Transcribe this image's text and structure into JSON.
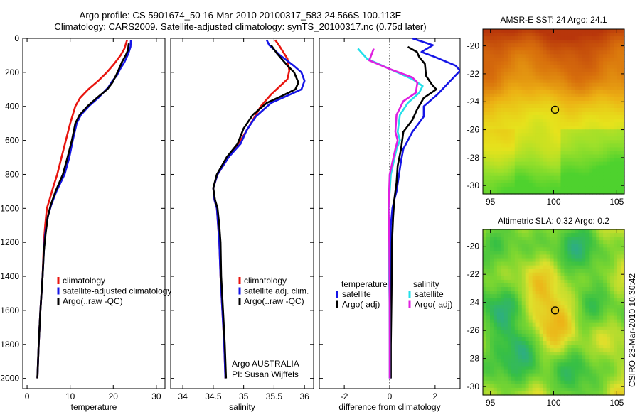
{
  "title_line1": "Argo profile: CS 5901674_50 16-Mar-2010 20100317_583 24.566S 100.113E",
  "title_line2": "Climatology: CARS2009. Satellite-adjusted climatology: synTS_20100317.nc (0.75d later)",
  "side_label": "CSIRO 23-Mar-2010 10:30:42",
  "chart_data": [
    {
      "type": "line",
      "xlabel": "temperature",
      "xlim": [
        -1,
        32
      ],
      "xticks": [
        0,
        10,
        20,
        30
      ],
      "ylim": [
        2060,
        0
      ],
      "yticks": [
        0,
        200,
        400,
        600,
        800,
        1000,
        1200,
        1400,
        1600,
        1800,
        2000
      ],
      "legend": [
        "climatology",
        "satellite-adjusted climatology",
        "Argo(..raw -QC)"
      ],
      "series": [
        {
          "name": "climatology",
          "color": "#e8150f",
          "points": [
            [
              23.2,
              10
            ],
            [
              22.6,
              60
            ],
            [
              21.7,
              100
            ],
            [
              20.2,
              150
            ],
            [
              18.5,
              200
            ],
            [
              16.5,
              250
            ],
            [
              14.2,
              300
            ],
            [
              12.3,
              350
            ],
            [
              11.2,
              400
            ],
            [
              10.0,
              500
            ],
            [
              9.0,
              600
            ],
            [
              8.0,
              700
            ],
            [
              7.0,
              800
            ],
            [
              6.0,
              880
            ],
            [
              5.2,
              950
            ],
            [
              4.6,
              1000
            ],
            [
              4.2,
              1100
            ],
            [
              3.9,
              1200
            ],
            [
              3.6,
              1400
            ],
            [
              3.1,
              1600
            ],
            [
              2.7,
              1800
            ],
            [
              2.4,
              2000
            ]
          ]
        },
        {
          "name": "satellite-adjusted climatology",
          "color": "#1515e6",
          "points": [
            [
              24.1,
              10
            ],
            [
              24.0,
              50
            ],
            [
              23.5,
              90
            ],
            [
              22.6,
              140
            ],
            [
              21.6,
              180
            ],
            [
              20.8,
              220
            ],
            [
              19.8,
              250
            ],
            [
              18.8,
              290
            ],
            [
              16.5,
              350
            ],
            [
              14.3,
              400
            ],
            [
              12.5,
              450
            ],
            [
              11.5,
              500
            ],
            [
              10.6,
              600
            ],
            [
              9.8,
              700
            ],
            [
              8.7,
              800
            ],
            [
              6.8,
              900
            ],
            [
              5.6,
              980
            ],
            [
              4.8,
              1050
            ],
            [
              4.2,
              1150
            ],
            [
              3.9,
              1250
            ],
            [
              3.6,
              1400
            ],
            [
              3.1,
              1600
            ],
            [
              2.7,
              1800
            ],
            [
              2.4,
              2000
            ]
          ]
        },
        {
          "name": "Argo(..raw -QC)",
          "color": "#000000",
          "points": [
            [
              23.6,
              30
            ],
            [
              23.4,
              70
            ],
            [
              22.9,
              100
            ],
            [
              22.0,
              140
            ],
            [
              21.5,
              170
            ],
            [
              20.8,
              210
            ],
            [
              19.8,
              260
            ],
            [
              18.6,
              300
            ],
            [
              16.2,
              350
            ],
            [
              14.0,
              400
            ],
            [
              12.2,
              450
            ],
            [
              11.2,
              500
            ],
            [
              10.4,
              600
            ],
            [
              9.4,
              700
            ],
            [
              8.3,
              800
            ],
            [
              6.6,
              900
            ],
            [
              5.5,
              980
            ],
            [
              4.8,
              1050
            ],
            [
              4.3,
              1150
            ],
            [
              3.9,
              1250
            ],
            [
              3.6,
              1400
            ],
            [
              3.1,
              1600
            ],
            [
              2.7,
              1800
            ],
            [
              2.4,
              2000
            ]
          ]
        }
      ]
    },
    {
      "type": "line",
      "xlabel": "salinity",
      "xlim": [
        33.8,
        36.15
      ],
      "xticks": [
        34,
        34.5,
        35,
        35.5,
        36
      ],
      "ylim": [
        2060,
        0
      ],
      "legend": [
        "climatology",
        "satellite adj. clim.",
        "Argo(..raw -QC)"
      ],
      "annotation_line1": "Argo AUSTRALIA",
      "annotation_line2": "PI: Susan Wijffels",
      "series": [
        {
          "name": "climatology",
          "color": "#e8150f",
          "points": [
            [
              35.52,
              10
            ],
            [
              35.58,
              40
            ],
            [
              35.72,
              120
            ],
            [
              35.75,
              190
            ],
            [
              35.72,
              240
            ],
            [
              35.6,
              280
            ],
            [
              35.45,
              330
            ],
            [
              35.28,
              400
            ],
            [
              35.12,
              500
            ],
            [
              34.95,
              600
            ],
            [
              34.75,
              700
            ],
            [
              34.57,
              800
            ],
            [
              34.5,
              880
            ],
            [
              34.52,
              950
            ],
            [
              34.56,
              1000
            ],
            [
              34.58,
              1100
            ],
            [
              34.6,
              1200
            ],
            [
              34.62,
              1400
            ],
            [
              34.65,
              1600
            ],
            [
              34.68,
              1800
            ],
            [
              34.7,
              2000
            ]
          ]
        },
        {
          "name": "satellite adj. clim.",
          "color": "#1515e6",
          "points": [
            [
              35.38,
              10
            ],
            [
              35.42,
              40
            ],
            [
              35.6,
              100
            ],
            [
              35.82,
              160
            ],
            [
              35.95,
              200
            ],
            [
              36.0,
              250
            ],
            [
              35.95,
              300
            ],
            [
              35.7,
              340
            ],
            [
              35.45,
              380
            ],
            [
              35.2,
              460
            ],
            [
              35.05,
              540
            ],
            [
              34.95,
              620
            ],
            [
              34.75,
              700
            ],
            [
              34.57,
              800
            ],
            [
              34.5,
              880
            ],
            [
              34.52,
              950
            ],
            [
              34.56,
              1000
            ],
            [
              34.58,
              1100
            ],
            [
              34.6,
              1200
            ],
            [
              34.62,
              1400
            ],
            [
              34.65,
              1600
            ],
            [
              34.68,
              1800
            ],
            [
              34.7,
              2000
            ]
          ]
        },
        {
          "name": "Argo(..raw -QC)",
          "color": "#000000",
          "points": [
            [
              35.45,
              40
            ],
            [
              35.55,
              90
            ],
            [
              35.72,
              160
            ],
            [
              35.83,
              200
            ],
            [
              35.9,
              260
            ],
            [
              35.85,
              300
            ],
            [
              35.62,
              340
            ],
            [
              35.38,
              380
            ],
            [
              35.15,
              450
            ],
            [
              35.0,
              530
            ],
            [
              34.9,
              620
            ],
            [
              34.72,
              700
            ],
            [
              34.56,
              800
            ],
            [
              34.5,
              880
            ],
            [
              34.53,
              950
            ],
            [
              34.57,
              1000
            ],
            [
              34.6,
              1100
            ],
            [
              34.62,
              1200
            ],
            [
              34.63,
              1400
            ],
            [
              34.66,
              1600
            ],
            [
              34.69,
              1800
            ],
            [
              34.71,
              2000
            ]
          ]
        }
      ]
    },
    {
      "type": "line",
      "xlabel": "difference from climatology",
      "xlim": [
        -3.1,
        3.1
      ],
      "xticks": [
        -2,
        0,
        2
      ],
      "ylim": [
        2060,
        0
      ],
      "legend_groups": [
        {
          "heading": "temperature",
          "items": [
            {
              "label": "satellite",
              "color": "#1515e6"
            },
            {
              "label": "Argo(-adj)",
              "color": "#000000"
            }
          ]
        },
        {
          "heading": "salinity",
          "items": [
            {
              "label": "satellite",
              "color": "#22e0ea"
            },
            {
              "label": "Argo(-adj)",
              "color": "#e020e0"
            }
          ]
        }
      ],
      "series": [
        {
          "name": "temperature satellite",
          "color": "#1515e6",
          "points": [
            [
              1.0,
              0
            ],
            [
              1.9,
              40
            ],
            [
              1.4,
              80
            ],
            [
              2.0,
              110
            ],
            [
              2.9,
              160
            ],
            [
              3.1,
              190
            ],
            [
              2.6,
              260
            ],
            [
              2.1,
              330
            ],
            [
              1.5,
              400
            ],
            [
              1.5,
              460
            ],
            [
              1.0,
              550
            ],
            [
              0.6,
              650
            ],
            [
              0.5,
              720
            ],
            [
              0.3,
              900
            ],
            [
              0.2,
              950
            ],
            [
              0.12,
              1000
            ],
            [
              0.05,
              1100
            ],
            [
              0.02,
              1400
            ],
            [
              0.0,
              1600
            ],
            [
              0.02,
              2000
            ]
          ]
        },
        {
          "name": "temperature Argo(-adj)",
          "color": "#000000",
          "points": [
            [
              0.8,
              50
            ],
            [
              1.2,
              80
            ],
            [
              1.3,
              110
            ],
            [
              1.55,
              150
            ],
            [
              1.6,
              220
            ],
            [
              1.85,
              270
            ],
            [
              2.05,
              300
            ],
            [
              1.5,
              350
            ],
            [
              1.2,
              420
            ],
            [
              1.0,
              480
            ],
            [
              0.6,
              550
            ],
            [
              0.5,
              650
            ],
            [
              0.35,
              750
            ],
            [
              0.3,
              850
            ],
            [
              0.2,
              950
            ],
            [
              0.15,
              1050
            ],
            [
              0.1,
              1200
            ],
            [
              0.08,
              1500
            ],
            [
              0.05,
              1800
            ],
            [
              0.05,
              2000
            ]
          ]
        },
        {
          "name": "salinity satellite",
          "color": "#22e0ea",
          "points": [
            [
              -1.4,
              60
            ],
            [
              -1.0,
              120
            ],
            [
              0.0,
              180
            ],
            [
              1.0,
              240
            ],
            [
              1.45,
              280
            ],
            [
              1.3,
              320
            ],
            [
              0.8,
              380
            ],
            [
              0.45,
              450
            ],
            [
              0.35,
              550
            ],
            [
              0.45,
              600
            ],
            [
              0.3,
              650
            ],
            [
              0.05,
              800
            ],
            [
              -0.05,
              1000
            ],
            [
              -0.05,
              1200
            ],
            [
              0.0,
              1600
            ],
            [
              0.0,
              2000
            ]
          ]
        },
        {
          "name": "salinity Argo(-adj)",
          "color": "#e020e0",
          "points": [
            [
              -0.7,
              60
            ],
            [
              -0.9,
              130
            ],
            [
              0.0,
              180
            ],
            [
              1.0,
              230
            ],
            [
              1.22,
              260
            ],
            [
              1.15,
              320
            ],
            [
              0.6,
              370
            ],
            [
              0.3,
              450
            ],
            [
              0.25,
              550
            ],
            [
              0.35,
              600
            ],
            [
              0.25,
              650
            ],
            [
              0.0,
              800
            ],
            [
              -0.05,
              1000
            ],
            [
              -0.02,
              1200
            ],
            [
              0.0,
              1600
            ],
            [
              0.0,
              2000
            ]
          ]
        }
      ]
    },
    {
      "type": "heatmap",
      "title": "AMSR-E SST: 24 Argo: 24.1",
      "xlim": [
        94.4,
        105.6
      ],
      "ylim": [
        -30.6,
        -18.8
      ],
      "xticks": [
        95,
        100,
        105
      ],
      "yticks": [
        -20,
        -22,
        -24,
        -26,
        -28,
        -30
      ],
      "marker": {
        "lon": 100.113,
        "lat": -24.566
      },
      "palette": [
        "#b8360b",
        "#d8700c",
        "#ecb014",
        "#e6e21c",
        "#9ee02a",
        "#4ed22e"
      ]
    },
    {
      "type": "heatmap",
      "title": "Altimetric SLA: 0.32 Argo: 0.2",
      "xlim": [
        94.4,
        105.6
      ],
      "ylim": [
        -30.6,
        -18.8
      ],
      "xticks": [
        95,
        100,
        105
      ],
      "yticks": [
        -20,
        -22,
        -24,
        -26,
        -28,
        -30
      ],
      "marker": {
        "lon": 100.113,
        "lat": -24.566
      },
      "palette": [
        "#2aa896",
        "#37c044",
        "#7ed730",
        "#dfe02c",
        "#ecb418",
        "#e0580f"
      ]
    }
  ]
}
